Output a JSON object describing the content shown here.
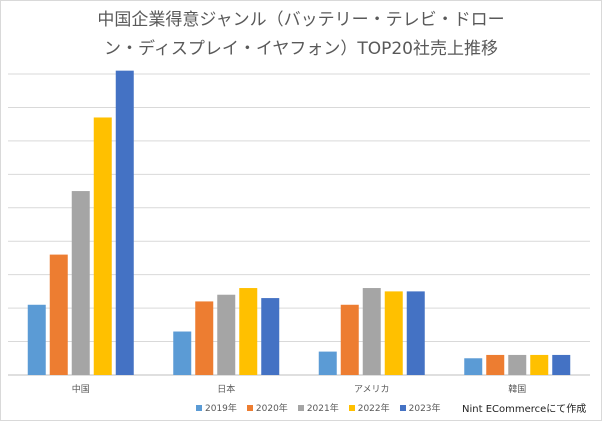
{
  "chart_data": {
    "type": "bar",
    "title": [
      "中国企業得意ジャンル（バッテリー・テレビ・ドロー",
      "ン・ディスプレイ・イヤフォン）TOP20社売上推移"
    ],
    "categories": [
      "中国",
      "日本",
      "アメリカ",
      "韓国"
    ],
    "series": [
      {
        "name": "2019年",
        "color": "#5B9BD5",
        "values": [
          2.1,
          1.3,
          0.7,
          0.5
        ]
      },
      {
        "name": "2020年",
        "color": "#ED7D31",
        "values": [
          3.6,
          2.2,
          2.1,
          0.6
        ]
      },
      {
        "name": "2021年",
        "color": "#A5A5A5",
        "values": [
          5.5,
          2.4,
          2.6,
          0.6
        ]
      },
      {
        "name": "2022年",
        "color": "#FFC000",
        "values": [
          7.7,
          2.6,
          2.5,
          0.6
        ]
      },
      {
        "name": "2023年",
        "color": "#4472C4",
        "values": [
          9.1,
          2.3,
          2.5,
          0.6
        ]
      }
    ],
    "ylim": [
      0,
      9
    ],
    "grid": true,
    "legend": "bottom"
  },
  "credit": "Nint ECommerceにて作成"
}
